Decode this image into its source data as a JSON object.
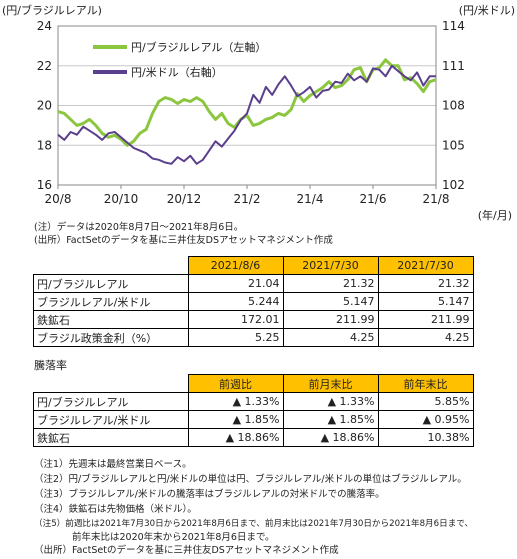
{
  "chart_data": {
    "type": "line",
    "left_axis_label": "(円/ブラジルレアル)",
    "right_axis_label": "(円/米ドル)",
    "x_unit_label": "(年/月)",
    "x_ticks": [
      "20/8",
      "20/10",
      "20/12",
      "21/2",
      "21/4",
      "21/6",
      "21/8"
    ],
    "ylim_left": [
      16,
      24
    ],
    "yticks_left": [
      "16",
      "18",
      "20",
      "22",
      "24"
    ],
    "ylim_right": [
      102,
      114
    ],
    "yticks_right": [
      "102",
      "105",
      "108",
      "111",
      "114"
    ],
    "grid": "horizontal",
    "legend_placement": "top-left",
    "series": [
      {
        "name": "円/ブラジルレアル（左軸）",
        "axis": "left",
        "color": "#8CC63F",
        "x": [
          0.0,
          0.2,
          0.4,
          0.6,
          0.8,
          1.0,
          1.2,
          1.4,
          1.6,
          1.8,
          2.0,
          2.2,
          2.4,
          2.6,
          2.8,
          3.0,
          3.2,
          3.4,
          3.6,
          3.8,
          4.0,
          4.2,
          4.4,
          4.6,
          4.8,
          5.0,
          5.2,
          5.4,
          5.6,
          5.8,
          6.0,
          6.2,
          6.4,
          6.6,
          6.8,
          7.0,
          7.2,
          7.4,
          7.6,
          7.8,
          8.0,
          8.2,
          8.4,
          8.6,
          8.8,
          9.0,
          9.2,
          9.4,
          9.6,
          9.8,
          10.0,
          10.2,
          10.4,
          10.6,
          10.8,
          11.0,
          11.2,
          11.4,
          11.6,
          11.8,
          12.0
        ],
        "y": [
          19.7,
          19.6,
          19.3,
          19.0,
          19.1,
          19.3,
          19.0,
          18.6,
          18.4,
          18.5,
          18.3,
          18.0,
          18.2,
          18.6,
          18.8,
          19.6,
          20.2,
          20.4,
          20.3,
          20.1,
          20.3,
          20.2,
          20.4,
          20.2,
          19.7,
          19.3,
          19.6,
          19.1,
          18.9,
          19.3,
          19.5,
          19.0,
          19.1,
          19.3,
          19.4,
          19.6,
          19.5,
          19.8,
          20.6,
          20.2,
          20.5,
          20.7,
          20.9,
          21.2,
          20.9,
          21.0,
          21.3,
          21.8,
          21.9,
          21.2,
          21.8,
          21.9,
          22.3,
          22.0,
          22.0,
          21.3,
          21.4,
          21.1,
          20.7,
          21.2,
          21.3
        ]
      },
      {
        "name": "円/米ドル（右軸）",
        "axis": "right",
        "color": "#5B3F8C",
        "x": [
          0.0,
          0.2,
          0.4,
          0.6,
          0.8,
          1.0,
          1.2,
          1.4,
          1.6,
          1.8,
          2.0,
          2.2,
          2.4,
          2.6,
          2.8,
          3.0,
          3.2,
          3.4,
          3.6,
          3.8,
          4.0,
          4.2,
          4.4,
          4.6,
          4.8,
          5.0,
          5.2,
          5.4,
          5.6,
          5.8,
          6.0,
          6.2,
          6.4,
          6.6,
          6.8,
          7.0,
          7.2,
          7.4,
          7.6,
          7.8,
          8.0,
          8.2,
          8.4,
          8.6,
          8.8,
          9.0,
          9.2,
          9.4,
          9.6,
          9.8,
          10.0,
          10.2,
          10.4,
          10.6,
          10.8,
          11.0,
          11.2,
          11.4,
          11.6,
          11.8,
          12.0
        ],
        "y": [
          105.8,
          105.4,
          106.0,
          105.8,
          106.4,
          106.1,
          105.8,
          105.4,
          105.9,
          106.0,
          105.6,
          105.2,
          104.8,
          104.6,
          104.4,
          104.0,
          103.9,
          103.7,
          103.6,
          104.1,
          103.8,
          104.2,
          103.6,
          103.9,
          104.6,
          105.3,
          104.9,
          105.5,
          106.1,
          106.9,
          107.4,
          108.8,
          108.2,
          109.4,
          108.8,
          109.6,
          110.2,
          109.5,
          108.7,
          109.0,
          109.4,
          108.6,
          109.1,
          109.2,
          109.8,
          109.7,
          110.4,
          109.9,
          110.2,
          109.8,
          110.8,
          110.7,
          110.2,
          111.0,
          110.6,
          110.2,
          109.9,
          110.5,
          109.5,
          110.2,
          110.2
        ]
      }
    ]
  },
  "notes_chart": [
    "(注）データは2020年8月7日～2021年8月6日。",
    "(出所）FactSetのデータを基に三井住友DSアセットマネジメント作成"
  ],
  "table1": {
    "headers": [
      "2021/8/6",
      "2021/7/30",
      "2021/7/30"
    ],
    "rows": [
      {
        "label": "円/ブラジルレアル",
        "values": [
          "21.04",
          "21.32",
          "21.32"
        ]
      },
      {
        "label": "ブラジルレアル/米ドル",
        "values": [
          "5.244",
          "5.147",
          "5.147"
        ]
      },
      {
        "label": "鉄鉱石",
        "values": [
          "172.01",
          "211.99",
          "211.99"
        ]
      },
      {
        "label": "ブラジル政策金利（%）",
        "values": [
          "5.25",
          "4.25",
          "4.25"
        ]
      }
    ]
  },
  "section2_label": "騰落率",
  "table2": {
    "headers": [
      "前週比",
      "前月末比",
      "前年末比"
    ],
    "rows": [
      {
        "label": "円/ブラジルレアル",
        "values": [
          "▲ 1.33%",
          "▲ 1.33%",
          "5.85%"
        ]
      },
      {
        "label": "ブラジルレアル/米ドル",
        "values": [
          "▲ 1.85%",
          "▲ 1.85%",
          "▲ 0.95%"
        ]
      },
      {
        "label": "鉄鉱石",
        "values": [
          "▲ 18.86%",
          "▲ 18.86%",
          "10.38%"
        ]
      }
    ]
  },
  "footnotes": [
    "（注1）先週末は最終営業日ベース。",
    "（注2）円/ブラジルレアルと円/米ドルの単位は円、ブラジルレアル/米ドルの単位はブラジルレアル。",
    "（注3）ブラジルレアル/米ドルの騰落率はブラジルレアルの対米ドルでの騰落率。",
    "（注4）鉄鉱石は先物価格（米ドル）。",
    "（注5）前週比は2021年7月30日から2021年8月6日まで、前月末比は2021年7月30日から2021年8月6日まで、",
    "　　　　前年末比は2020年末から2021年8月6日まで。",
    "（出所）FactSetのデータを基に三井住友DSアセットマネジメント作成"
  ]
}
